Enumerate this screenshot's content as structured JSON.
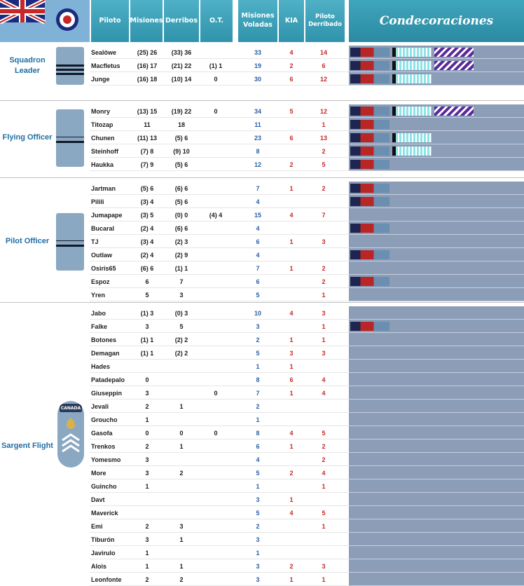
{
  "header": {
    "piloto": "Piloto",
    "misiones": "Misiones",
    "derribos": "Derribos",
    "ot": "O.T.",
    "misiones_voladas": "Misiones Voladas",
    "kia": "KIA",
    "piloto_derribado": "Piloto Derribado",
    "condecoraciones": "Condecoraciones"
  },
  "colors": {
    "header_bg": "#3fa6bd",
    "decor_bg": "#8c9db8",
    "kia": "#c62828",
    "voladas": "#2a5fa5",
    "rank": "#1f6fa3"
  },
  "groups": [
    {
      "rank": "Squadron Leader",
      "pilots": [
        {
          "name": "Sealöwe",
          "mis": "(25) 26",
          "der": "(33) 36",
          "ot": "",
          "vol": "33",
          "kia": "4",
          "derr": "14",
          "ribbons": [
            "dfc",
            "dfm",
            "dfx"
          ]
        },
        {
          "name": "Macfletus",
          "mis": "(16) 17",
          "der": "(21) 22",
          "ot": "(1) 1",
          "vol": "19",
          "kia": "2",
          "derr": "6",
          "ribbons": [
            "dfc",
            "dfm",
            "dfx"
          ]
        },
        {
          "name": "Junge",
          "mis": "(16) 18",
          "der": "(10) 14",
          "ot": "0",
          "vol": "30",
          "kia": "6",
          "derr": "12",
          "ribbons": [
            "dfc",
            "dfm"
          ]
        }
      ]
    },
    {
      "rank": "Flying Officer",
      "pilots": [
        {
          "name": "Monry",
          "mis": "(13) 15",
          "der": "(19) 22",
          "ot": "0",
          "vol": "34",
          "kia": "5",
          "derr": "12",
          "ribbons": [
            "dfc",
            "dfm",
            "dfx"
          ]
        },
        {
          "name": "Titozap",
          "mis": "11",
          "der": "18",
          "ot": "",
          "vol": "11",
          "kia": "",
          "derr": "1",
          "ribbons": [
            "dfc"
          ]
        },
        {
          "name": "Chunen",
          "mis": "(11) 13",
          "der": "(5) 6",
          "ot": "",
          "vol": "23",
          "kia": "6",
          "derr": "13",
          "ribbons": [
            "dfc",
            "dfm"
          ]
        },
        {
          "name": "Steinhoff",
          "mis": "(7) 8",
          "der": "(9) 10",
          "ot": "",
          "vol": "8",
          "kia": "",
          "derr": "2",
          "ribbons": [
            "dfc",
            "dfm"
          ]
        },
        {
          "name": "Haukka",
          "mis": "(7) 9",
          "der": "(5) 6",
          "ot": "",
          "vol": "12",
          "kia": "2",
          "derr": "5",
          "ribbons": [
            "dfc"
          ]
        }
      ]
    },
    {
      "rank": "Pilot Officer",
      "pilots": [
        {
          "name": "Jartman",
          "mis": "(5) 6",
          "der": "(6) 6",
          "ot": "",
          "vol": "7",
          "kia": "1",
          "derr": "2",
          "ribbons": [
            "dfc"
          ]
        },
        {
          "name": "Pilili",
          "mis": "(3) 4",
          "der": "(5) 6",
          "ot": "",
          "vol": "4",
          "kia": "",
          "derr": "",
          "ribbons": [
            "dfc"
          ]
        },
        {
          "name": "Jumapape",
          "mis": "(3) 5",
          "der": "(0) 0",
          "ot": "(4) 4",
          "vol": "15",
          "kia": "4",
          "derr": "7",
          "ribbons": []
        },
        {
          "name": "Bucaral",
          "mis": "(2) 4",
          "der": "(6) 6",
          "ot": "",
          "vol": "4",
          "kia": "",
          "derr": "",
          "ribbons": [
            "dfc"
          ]
        },
        {
          "name": "TJ",
          "mis": "(3) 4",
          "der": "(2) 3",
          "ot": "",
          "vol": "6",
          "kia": "1",
          "derr": "3",
          "ribbons": []
        },
        {
          "name": "Outlaw",
          "mis": "(2) 4",
          "der": "(2) 9",
          "ot": "",
          "vol": "4",
          "kia": "",
          "derr": "",
          "ribbons": [
            "dfc"
          ]
        },
        {
          "name": "Osiris65",
          "mis": "(6) 6",
          "der": "(1) 1",
          "ot": "",
          "vol": "7",
          "kia": "1",
          "derr": "2",
          "ribbons": []
        },
        {
          "name": "Espoz",
          "mis": "6",
          "der": "7",
          "ot": "",
          "vol": "6",
          "kia": "",
          "derr": "2",
          "ribbons": [
            "dfc"
          ]
        },
        {
          "name": "Yren",
          "mis": "5",
          "der": "3",
          "ot": "",
          "vol": "5",
          "kia": "",
          "derr": "1",
          "ribbons": []
        }
      ]
    },
    {
      "rank": "Sargent Flight",
      "insignia_text": "CANADA",
      "pilots": [
        {
          "name": "Jabo",
          "mis": "(1) 3",
          "der": "(0) 3",
          "ot": "",
          "vol": "10",
          "kia": "4",
          "derr": "3",
          "ribbons": []
        },
        {
          "name": "Falke",
          "mis": "3",
          "der": "5",
          "ot": "",
          "vol": "3",
          "kia": "",
          "derr": "1",
          "ribbons": [
            "dfc"
          ]
        },
        {
          "name": "Botones",
          "mis": "(1) 1",
          "der": "(2) 2",
          "ot": "",
          "vol": "2",
          "kia": "1",
          "derr": "1",
          "ribbons": []
        },
        {
          "name": "Demagan",
          "mis": "(1) 1",
          "der": "(2) 2",
          "ot": "",
          "vol": "5",
          "kia": "3",
          "derr": "3",
          "ribbons": []
        },
        {
          "name": "Hades",
          "mis": "",
          "der": "",
          "ot": "",
          "vol": "1",
          "kia": "1",
          "derr": "",
          "ribbons": []
        },
        {
          "name": "Patadepalo",
          "mis": "0",
          "der": "",
          "ot": "",
          "vol": "8",
          "kia": "6",
          "derr": "4",
          "ribbons": []
        },
        {
          "name": "Giuseppin",
          "mis": "3",
          "der": "",
          "ot": "0",
          "vol": "7",
          "kia": "1",
          "derr": "4",
          "ribbons": []
        },
        {
          "name": "Jevali",
          "mis": "2",
          "der": "1",
          "ot": "",
          "vol": "2",
          "kia": "",
          "derr": "",
          "ribbons": []
        },
        {
          "name": "Groucho",
          "mis": "1",
          "der": "",
          "ot": "",
          "vol": "1",
          "kia": "",
          "derr": "",
          "ribbons": []
        },
        {
          "name": "Gasofa",
          "mis": "0",
          "der": "0",
          "ot": "0",
          "vol": "8",
          "kia": "4",
          "derr": "5",
          "ribbons": []
        },
        {
          "name": "Trenkos",
          "mis": "2",
          "der": "1",
          "ot": "",
          "vol": "6",
          "kia": "1",
          "derr": "2",
          "ribbons": []
        },
        {
          "name": "Yomesmo",
          "mis": "3",
          "der": "",
          "ot": "",
          "vol": "4",
          "kia": "",
          "derr": "2",
          "ribbons": []
        },
        {
          "name": "More",
          "mis": "3",
          "der": "2",
          "ot": "",
          "vol": "5",
          "kia": "2",
          "derr": "4",
          "ribbons": []
        },
        {
          "name": "Guincho",
          "mis": "1",
          "der": "",
          "ot": "",
          "vol": "1",
          "kia": "",
          "derr": "1",
          "ribbons": []
        },
        {
          "name": "Davt",
          "mis": "",
          "der": "",
          "ot": "",
          "vol": "3",
          "kia": "1",
          "derr": "",
          "ribbons": []
        },
        {
          "name": "Maverick",
          "mis": "",
          "der": "",
          "ot": "",
          "vol": "5",
          "kia": "4",
          "derr": "5",
          "ribbons": []
        },
        {
          "name": "Emi",
          "mis": "2",
          "der": "3",
          "ot": "",
          "vol": "2",
          "kia": "",
          "derr": "1",
          "ribbons": []
        },
        {
          "name": "Tiburón",
          "mis": "3",
          "der": "1",
          "ot": "",
          "vol": "3",
          "kia": "",
          "derr": "",
          "ribbons": []
        },
        {
          "name": "Javirulo",
          "mis": "1",
          "der": "",
          "ot": "",
          "vol": "1",
          "kia": "",
          "derr": "",
          "ribbons": []
        },
        {
          "name": "Alois",
          "mis": "1",
          "der": "1",
          "ot": "",
          "vol": "3",
          "kia": "2",
          "derr": "3",
          "ribbons": []
        },
        {
          "name": "Leonfonte",
          "mis": "2",
          "der": "2",
          "ot": "",
          "vol": "3",
          "kia": "1",
          "derr": "1",
          "ribbons": []
        }
      ]
    }
  ]
}
